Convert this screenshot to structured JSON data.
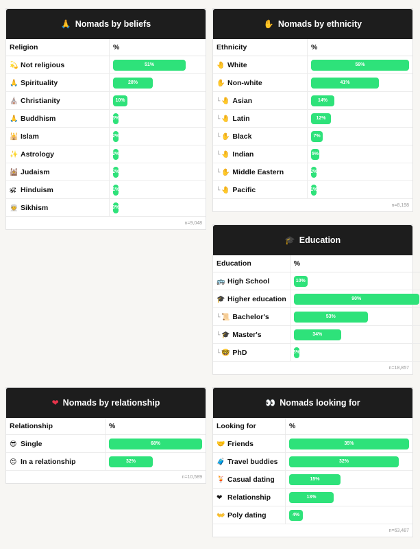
{
  "colors": {
    "bar": "#2ee27a",
    "header_bg": "#1d1d1d"
  },
  "cards": {
    "beliefs": {
      "title": "Nomads by beliefs",
      "title_icon": "🙏",
      "col_label": "Religion",
      "col_value": "%",
      "rows": [
        {
          "icon": "💫",
          "label": "Not religious",
          "value": "51%",
          "pct": 51
        },
        {
          "icon": "🙏",
          "label": "Spirituality",
          "value": "28%",
          "pct": 28
        },
        {
          "icon": "⛪",
          "label": "Christianity",
          "value": "10%",
          "pct": 10
        },
        {
          "icon": "🙏",
          "label": "Buddhism",
          "value": "3%",
          "pct": 3
        },
        {
          "icon": "🕌",
          "label": "Islam",
          "value": "2%",
          "pct": 2
        },
        {
          "icon": "✨",
          "label": "Astrology",
          "value": "2%",
          "pct": 2
        },
        {
          "icon": "🕍",
          "label": "Judaism",
          "value": "2%",
          "pct": 2
        },
        {
          "icon": "🕉",
          "label": "Hinduism",
          "value": "1%",
          "pct": 1
        },
        {
          "icon": "👳",
          "label": "Sikhism",
          "value": "0%",
          "pct": 0
        }
      ],
      "footer": "n=9,048"
    },
    "ethnicity": {
      "title": "Nomads by ethnicity",
      "title_icon": "✋",
      "col_label": "Ethnicity",
      "col_value": "%",
      "rows": [
        {
          "icon": "🤚",
          "label": "White",
          "value": "59%",
          "pct": 59,
          "sub": false
        },
        {
          "icon": "✋",
          "label": "Non-white",
          "value": "41%",
          "pct": 41,
          "sub": false
        },
        {
          "icon": "🤚",
          "label": "Asian",
          "value": "14%",
          "pct": 14,
          "sub": true
        },
        {
          "icon": "🤚",
          "label": "Latin",
          "value": "12%",
          "pct": 12,
          "sub": true
        },
        {
          "icon": "✋",
          "label": "Black",
          "value": "7%",
          "pct": 7,
          "sub": true
        },
        {
          "icon": "🤚",
          "label": "Indian",
          "value": "5%",
          "pct": 5,
          "sub": true
        },
        {
          "icon": "✋",
          "label": "Middle Eastern",
          "value": "2%",
          "pct": 2,
          "sub": true
        },
        {
          "icon": "🤚",
          "label": "Pacific",
          "value": "1%",
          "pct": 1,
          "sub": true
        }
      ],
      "footer": "n=8,198"
    },
    "education": {
      "title": "Education",
      "title_icon": "🎓",
      "col_label": "Education",
      "col_value": "%",
      "rows": [
        {
          "icon": "🚌",
          "label": "High School",
          "value": "10%",
          "pct": 10,
          "sub": false
        },
        {
          "icon": "🎓",
          "label": "Higher education",
          "value": "90%",
          "pct": 90,
          "sub": false
        },
        {
          "icon": "📜",
          "label": "Bachelor's",
          "value": "53%",
          "pct": 53,
          "sub": true
        },
        {
          "icon": "🎓",
          "label": "Master's",
          "value": "34%",
          "pct": 34,
          "sub": true
        },
        {
          "icon": "🤓",
          "label": "PhD",
          "value": "3%",
          "pct": 3,
          "sub": true
        }
      ],
      "footer": "n=18,857"
    },
    "relationship": {
      "title": "Nomads by relationship",
      "title_icon": "❤",
      "col_label": "Relationship",
      "col_value": "%",
      "rows": [
        {
          "icon": "😎",
          "label": "Single",
          "value": "68%",
          "pct": 68
        },
        {
          "icon": "😍",
          "label": "In a relationship",
          "value": "32%",
          "pct": 32
        }
      ],
      "footer": "n=10,589"
    },
    "looking": {
      "title": "Nomads looking for",
      "title_icon": "👀",
      "col_label": "Looking for",
      "col_value": "%",
      "rows": [
        {
          "icon": "🤝",
          "label": "Friends",
          "value": "35%",
          "pct": 35
        },
        {
          "icon": "🧳",
          "label": "Travel buddies",
          "value": "32%",
          "pct": 32
        },
        {
          "icon": "🍹",
          "label": "Casual dating",
          "value": "15%",
          "pct": 15
        },
        {
          "icon": "❤",
          "label": "Relationship",
          "value": "13%",
          "pct": 13
        },
        {
          "icon": "👐",
          "label": "Poly dating",
          "value": "4%",
          "pct": 4
        }
      ],
      "footer": "n=63,487"
    }
  }
}
